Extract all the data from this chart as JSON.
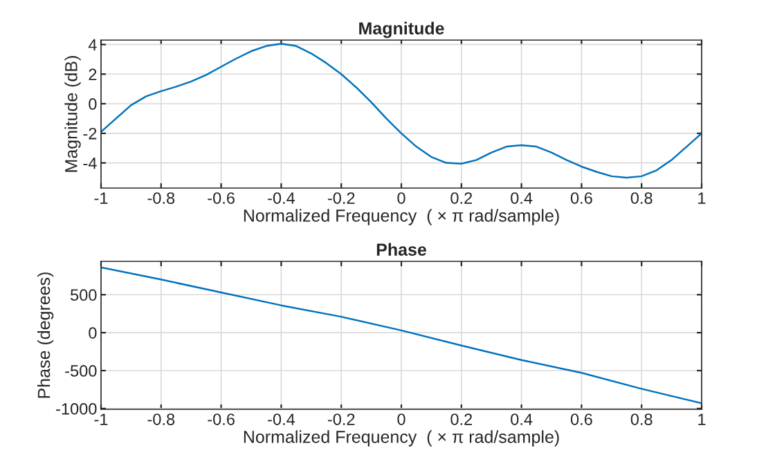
{
  "chart_data": [
    {
      "type": "line",
      "title": "Magnitude",
      "xlabel": "Normalized Frequency  ( × π rad/sample)",
      "ylabel": "Magnitude (dB)",
      "x": [
        -1,
        -0.95,
        -0.9,
        -0.85,
        -0.8,
        -0.75,
        -0.7,
        -0.65,
        -0.6,
        -0.55,
        -0.5,
        -0.45,
        -0.4,
        -0.35,
        -0.3,
        -0.25,
        -0.2,
        -0.15,
        -0.1,
        -0.05,
        0,
        0.05,
        0.1,
        0.15,
        0.2,
        0.25,
        0.3,
        0.35,
        0.4,
        0.45,
        0.5,
        0.55,
        0.6,
        0.65,
        0.7,
        0.75,
        0.8,
        0.85,
        0.9,
        0.95,
        1
      ],
      "series": [
        {
          "color": "#0072bd",
          "values": [
            -1.9,
            -1.0,
            -0.1,
            0.5,
            0.85,
            1.15,
            1.5,
            1.95,
            2.5,
            3.05,
            3.55,
            3.9,
            4.05,
            3.9,
            3.4,
            2.75,
            2.0,
            1.1,
            0.1,
            -1.0,
            -2.0,
            -2.9,
            -3.6,
            -4.0,
            -4.05,
            -3.8,
            -3.3,
            -2.9,
            -2.8,
            -2.9,
            -3.3,
            -3.8,
            -4.25,
            -4.6,
            -4.9,
            -5.0,
            -4.9,
            -4.5,
            -3.8,
            -2.9,
            -2.0
          ]
        }
      ],
      "xlim": [
        -1,
        1
      ],
      "xticks": [
        -1,
        -0.8,
        -0.6,
        -0.4,
        -0.2,
        0,
        0.2,
        0.4,
        0.6,
        0.8,
        1
      ],
      "ylim": [
        -5.7,
        4.3
      ],
      "yticks": [
        -4,
        -2,
        0,
        2,
        4
      ],
      "grid": true,
      "line_style": "solid",
      "marker": "none"
    },
    {
      "type": "line",
      "title": "Phase",
      "xlabel": "Normalized Frequency  ( × π rad/sample)",
      "ylabel": "Phase (degrees)",
      "x": [
        -1,
        -0.8,
        -0.6,
        -0.4,
        -0.2,
        0,
        0.2,
        0.4,
        0.6,
        0.8,
        1
      ],
      "series": [
        {
          "color": "#0072bd",
          "values": [
            860,
            700,
            530,
            360,
            210,
            30,
            -170,
            -360,
            -530,
            -740,
            -930
          ]
        }
      ],
      "xlim": [
        -1,
        1
      ],
      "xticks": [
        -1,
        -0.8,
        -0.6,
        -0.4,
        -0.2,
        0,
        0.2,
        0.4,
        0.6,
        0.8,
        1
      ],
      "ylim": [
        -1010,
        940
      ],
      "yticks": [
        -1000,
        -500,
        0,
        500
      ],
      "grid": true,
      "line_style": "solid",
      "marker": "none"
    }
  ]
}
